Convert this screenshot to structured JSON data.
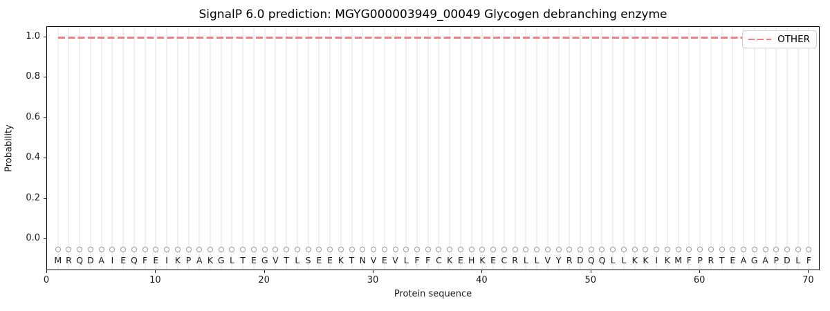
{
  "chart_data": {
    "type": "line",
    "title": "SignalP 6.0 prediction: MGYG000003949_00049 Glycogen debranching enzyme",
    "xlabel": "Protein sequence",
    "ylabel": "Probability",
    "xlim": [
      0,
      71
    ],
    "ylim": [
      -0.16,
      1.05
    ],
    "xticks": [
      0,
      10,
      20,
      30,
      40,
      50,
      60,
      70
    ],
    "yticks": [
      0.0,
      0.2,
      0.4,
      0.6,
      0.8,
      1.0
    ],
    "grid": {
      "axis": "x",
      "per_residue": true,
      "color": "#f0f0f0"
    },
    "legend": {
      "position": "upper-right",
      "entries": [
        {
          "label": "OTHER",
          "color": "#f08080",
          "linestyle": "dashed"
        }
      ]
    },
    "series": [
      {
        "name": "OTHER",
        "linestyle": "dashed",
        "color": "#f08080",
        "x_start": 1,
        "x_end": 70,
        "y_constant": 1.0
      }
    ],
    "sequence": {
      "residues": "MRQDAIEQFEIKPAKGLTEGVTLSEEKTNVEVLFFCKEHKECRLLVYRDQQLLKKIKMFPRTEAGAPDLF",
      "length": 70,
      "marker": "o",
      "marker_y": -0.05,
      "marker_color": "#999999",
      "letter_color": "#1a1a1a"
    }
  }
}
